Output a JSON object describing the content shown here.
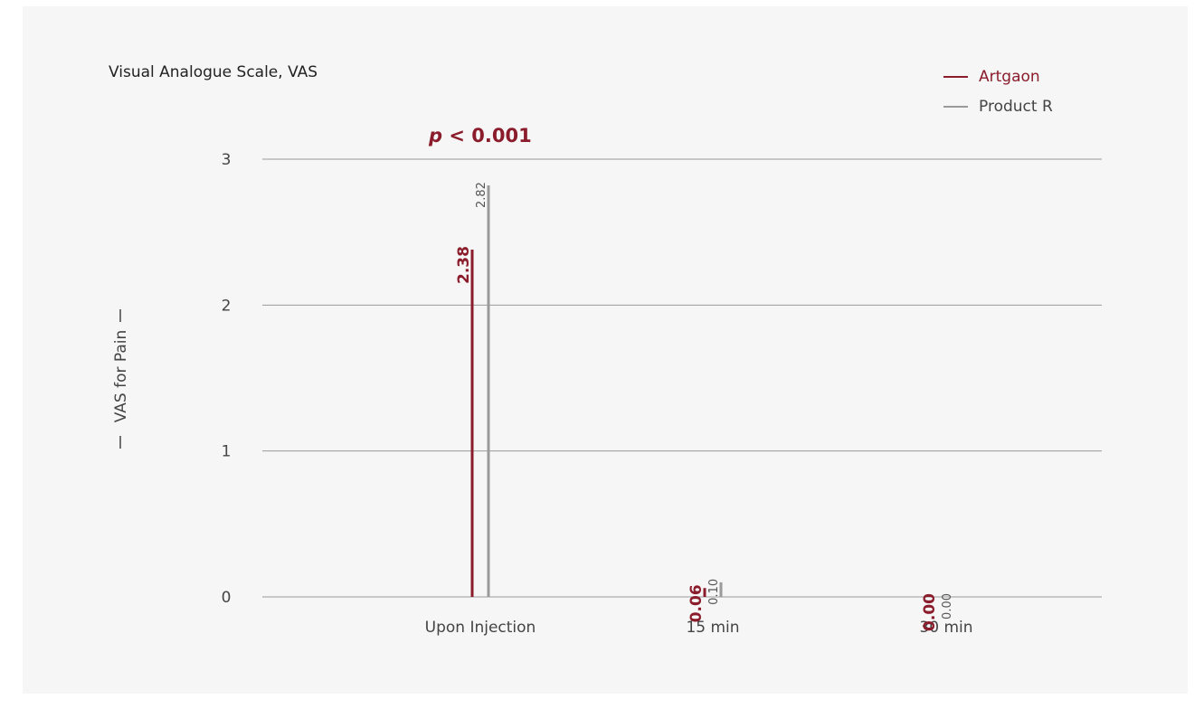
{
  "chart_data": {
    "type": "bar",
    "title": "Visual Analogue Scale, VAS",
    "ylabel": "VAS for Pain",
    "xlabel": "",
    "ylim": [
      0,
      3
    ],
    "y_ticks": [
      "0",
      "1",
      "2",
      "3"
    ],
    "categories": [
      "Upon Injection",
      "15 min",
      "30 min"
    ],
    "annotation": {
      "p_symbol": "p",
      "p_rest": " < 0.001"
    },
    "grid": true,
    "legend_position": "top-right",
    "series": [
      {
        "name": "Artgaon",
        "color": "#8a1c2b",
        "values": [
          2.38,
          0.06,
          0.0
        ],
        "labels": [
          "2.38",
          "0.06",
          "0.00"
        ]
      },
      {
        "name": "Product R",
        "color": "#9a9a9a",
        "values": [
          2.82,
          0.1,
          0.0
        ],
        "labels": [
          "2.82",
          "0.10",
          "0.00"
        ]
      }
    ]
  },
  "colors": {
    "background": "#f6f6f6",
    "grid": "#9a9a9a",
    "text": "#333333"
  }
}
